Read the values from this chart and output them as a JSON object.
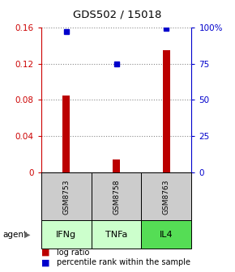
{
  "title": "GDS502 / 15018",
  "samples": [
    "GSM8753",
    "GSM8758",
    "GSM8763"
  ],
  "agents": [
    "IFNg",
    "TNFa",
    "IL4"
  ],
  "log_ratios": [
    0.085,
    0.015,
    0.135
  ],
  "percentile_ranks": [
    97,
    75,
    99
  ],
  "bar_color": "#bb0000",
  "dot_color": "#0000cc",
  "left_ylim": [
    0,
    0.16
  ],
  "right_ylim": [
    0,
    100
  ],
  "left_yticks": [
    0,
    0.04,
    0.08,
    0.12,
    0.16
  ],
  "right_yticks": [
    0,
    25,
    50,
    75,
    100
  ],
  "right_yticklabels": [
    "0",
    "25",
    "50",
    "75",
    "100%"
  ],
  "left_axis_color": "#cc0000",
  "right_axis_color": "#0000cc",
  "sample_box_color": "#cccccc",
  "agent_box_colors": [
    "#ccffcc",
    "#ccffcc",
    "#55dd55"
  ],
  "grid_color": "#888888",
  "background_color": "#ffffff",
  "bar_width": 0.15,
  "legend_log_label": "log ratio",
  "legend_pct_label": "percentile rank within the sample"
}
